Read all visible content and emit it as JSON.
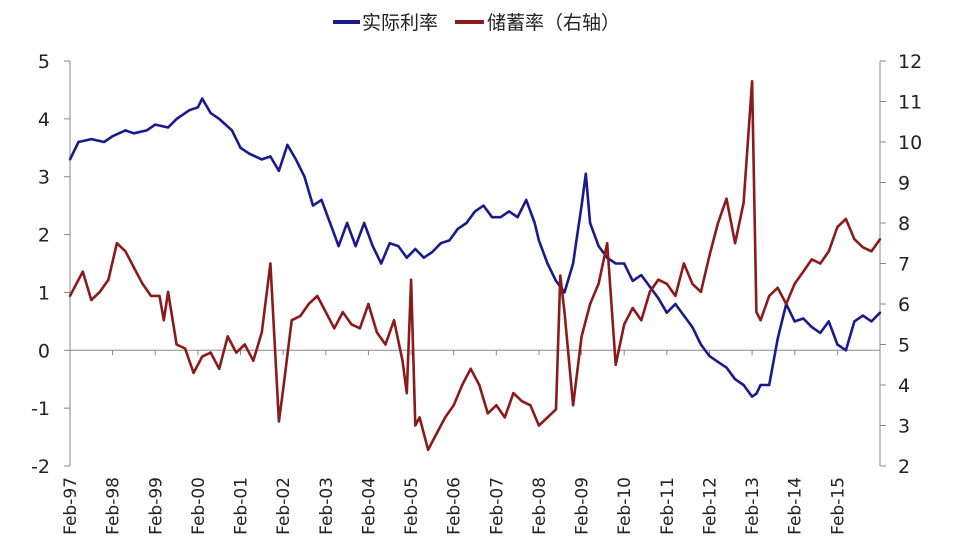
{
  "chart_data": {
    "type": "line",
    "title": "",
    "x_ticks": [
      "Feb-97",
      "Feb-98",
      "Feb-99",
      "Feb-00",
      "Feb-01",
      "Feb-02",
      "Feb-03",
      "Feb-04",
      "Feb-05",
      "Feb-06",
      "Feb-07",
      "Feb-08",
      "Feb-09",
      "Feb-10",
      "Feb-11",
      "Feb-12",
      "Feb-13",
      "Feb-14",
      "Feb-15"
    ],
    "x_range": [
      1997.0,
      2016.0
    ],
    "y_left": {
      "range": [
        -2,
        5
      ],
      "ticks": [
        "5",
        "4",
        "3",
        "2",
        "1",
        "0",
        "-1",
        "-2"
      ]
    },
    "y_right": {
      "range": [
        2,
        12
      ],
      "ticks": [
        "12",
        "11",
        "10",
        "9",
        "8",
        "7",
        "6",
        "5",
        "4",
        "3",
        "2"
      ]
    },
    "legend_position": "top-center",
    "series": [
      {
        "name": "实际利率",
        "axis": "left",
        "color": "#1a1a8c",
        "x": [
          1997.0,
          1997.2,
          1997.5,
          1997.8,
          1998.0,
          1998.3,
          1998.5,
          1998.8,
          1999.0,
          1999.3,
          1999.5,
          1999.8,
          2000.0,
          2000.1,
          2000.3,
          2000.5,
          2000.8,
          2001.0,
          2001.2,
          2001.5,
          2001.7,
          2001.9,
          2002.1,
          2002.3,
          2002.5,
          2002.7,
          2002.9,
          2003.1,
          2003.3,
          2003.5,
          2003.7,
          2003.9,
          2004.1,
          2004.3,
          2004.5,
          2004.7,
          2004.9,
          2005.1,
          2005.3,
          2005.5,
          2005.7,
          2005.9,
          2006.1,
          2006.3,
          2006.5,
          2006.7,
          2006.9,
          2007.1,
          2007.3,
          2007.5,
          2007.7,
          2007.9,
          2008.0,
          2008.2,
          2008.4,
          2008.6,
          2008.8,
          2008.9,
          2009.0,
          2009.1,
          2009.2,
          2009.4,
          2009.6,
          2009.8,
          2010.0,
          2010.2,
          2010.4,
          2010.6,
          2010.8,
          2011.0,
          2011.2,
          2011.4,
          2011.6,
          2011.8,
          2012.0,
          2012.2,
          2012.4,
          2012.6,
          2012.8,
          2013.0,
          2013.1,
          2013.2,
          2013.4,
          2013.6,
          2013.8,
          2014.0,
          2014.2,
          2014.4,
          2014.6,
          2014.8,
          2015.0,
          2015.2,
          2015.4,
          2015.6,
          2015.8,
          2016.0
        ],
        "values": [
          3.3,
          3.6,
          3.65,
          3.6,
          3.7,
          3.8,
          3.75,
          3.8,
          3.9,
          3.85,
          4.0,
          4.15,
          4.2,
          4.35,
          4.1,
          4.0,
          3.8,
          3.5,
          3.4,
          3.3,
          3.35,
          3.1,
          3.55,
          3.3,
          3.0,
          2.5,
          2.6,
          2.2,
          1.8,
          2.2,
          1.8,
          2.2,
          1.8,
          1.5,
          1.85,
          1.8,
          1.6,
          1.75,
          1.6,
          1.7,
          1.85,
          1.9,
          2.1,
          2.2,
          2.4,
          2.5,
          2.3,
          2.3,
          2.4,
          2.3,
          2.6,
          2.2,
          1.9,
          1.5,
          1.2,
          1.0,
          1.5,
          2.0,
          2.5,
          3.05,
          2.2,
          1.8,
          1.6,
          1.5,
          1.5,
          1.2,
          1.3,
          1.1,
          0.9,
          0.65,
          0.8,
          0.6,
          0.4,
          0.1,
          -0.1,
          -0.2,
          -0.3,
          -0.5,
          -0.6,
          -0.8,
          -0.75,
          -0.6,
          -0.6,
          0.2,
          0.8,
          0.5,
          0.55,
          0.4,
          0.3,
          0.5,
          0.1,
          0.0,
          0.5,
          0.6,
          0.5,
          0.65
        ]
      },
      {
        "name": "储蓄率（右轴）",
        "axis": "right",
        "color": "#8b1a1a",
        "x": [
          1997.0,
          1997.1,
          1997.3,
          1997.5,
          1997.7,
          1997.9,
          1998.1,
          1998.3,
          1998.5,
          1998.7,
          1998.9,
          1999.1,
          1999.2,
          1999.3,
          1999.5,
          1999.7,
          1999.9,
          2000.1,
          2000.3,
          2000.5,
          2000.7,
          2000.9,
          2001.1,
          2001.3,
          2001.5,
          2001.7,
          2001.9,
          2002.0,
          2002.2,
          2002.4,
          2002.6,
          2002.8,
          2003.0,
          2003.2,
          2003.4,
          2003.6,
          2003.8,
          2004.0,
          2004.2,
          2004.4,
          2004.6,
          2004.8,
          2004.9,
          2005.0,
          2005.1,
          2005.2,
          2005.4,
          2005.6,
          2005.8,
          2006.0,
          2006.2,
          2006.4,
          2006.6,
          2006.8,
          2007.0,
          2007.2,
          2007.4,
          2007.6,
          2007.8,
          2008.0,
          2008.2,
          2008.4,
          2008.5,
          2008.6,
          2008.8,
          2009.0,
          2009.2,
          2009.4,
          2009.6,
          2009.8,
          2010.0,
          2010.2,
          2010.4,
          2010.6,
          2010.8,
          2011.0,
          2011.2,
          2011.4,
          2011.6,
          2011.8,
          2012.0,
          2012.2,
          2012.4,
          2012.6,
          2012.8,
          2013.0,
          2013.1,
          2013.2,
          2013.4,
          2013.6,
          2013.8,
          2014.0,
          2014.2,
          2014.4,
          2014.6,
          2014.8,
          2015.0,
          2015.2,
          2015.4,
          2015.6,
          2015.8,
          2016.0
        ],
        "values": [
          6.2,
          6.4,
          6.8,
          6.1,
          6.3,
          6.6,
          7.5,
          7.3,
          6.9,
          6.5,
          6.2,
          6.2,
          5.6,
          6.3,
          5.0,
          4.9,
          4.3,
          4.7,
          4.8,
          4.4,
          5.2,
          4.8,
          5.0,
          4.6,
          5.3,
          7.0,
          3.1,
          3.9,
          5.6,
          5.7,
          6.0,
          6.2,
          5.8,
          5.4,
          5.8,
          5.5,
          5.4,
          6.0,
          5.3,
          5.0,
          5.6,
          4.6,
          3.8,
          6.6,
          3.0,
          3.2,
          2.4,
          2.8,
          3.2,
          3.5,
          4.0,
          4.4,
          4.0,
          3.3,
          3.5,
          3.2,
          3.8,
          3.6,
          3.5,
          3.0,
          3.2,
          3.4,
          6.7,
          5.8,
          3.5,
          5.2,
          6.0,
          6.5,
          7.5,
          4.5,
          5.5,
          5.9,
          5.6,
          6.3,
          6.6,
          6.5,
          6.2,
          7.0,
          6.5,
          6.3,
          7.2,
          8.0,
          8.6,
          7.5,
          8.5,
          11.5,
          5.8,
          5.6,
          6.2,
          6.4,
          6.0,
          6.5,
          6.8,
          7.1,
          7.0,
          7.3,
          7.9,
          8.1,
          7.6,
          7.4,
          7.3,
          7.6
        ]
      }
    ]
  }
}
